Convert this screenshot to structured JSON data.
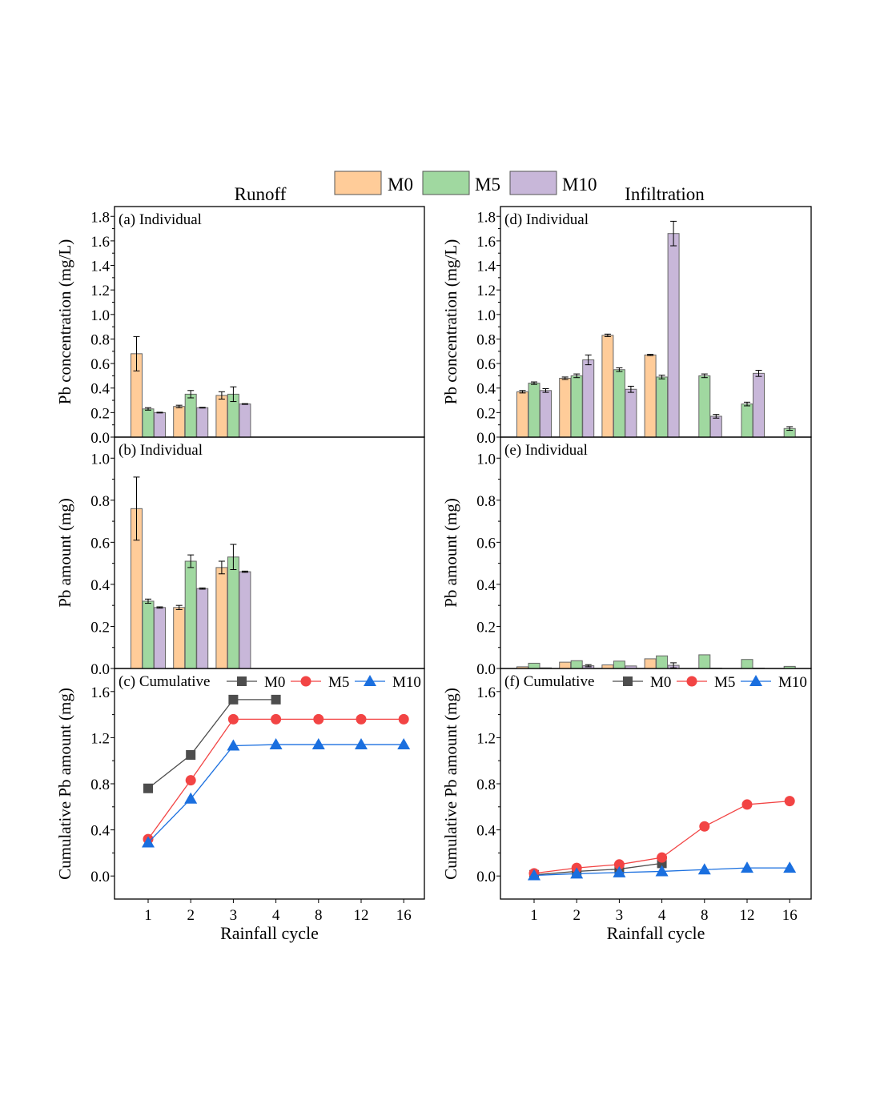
{
  "chart_data": {
    "type": "bar",
    "legend": {
      "entries": [
        "M0",
        "M5",
        "M10"
      ],
      "placement": "top-center"
    },
    "section_titles": {
      "left": "Runoff",
      "right": "Infiltration"
    },
    "colors": {
      "M0_fill": "#FFCC99",
      "M5_fill": "#A0D8A0",
      "M10_fill": "#C8B7D9",
      "M0_line": "#4D4D4D",
      "M5_line": "#F24444",
      "M10_line": "#1A6FDF"
    },
    "categories": [
      "1",
      "2",
      "3",
      "4",
      "8",
      "12",
      "16"
    ],
    "xlabel": "Rainfall cycle",
    "panels": [
      {
        "id": "a",
        "label": "(a) Individual",
        "type": "bar",
        "ylabel": "Pb concentration (mg/L)",
        "ylim": [
          0,
          1.88
        ],
        "yticks": [
          "0.0",
          "0.2",
          "0.4",
          "0.6",
          "0.8",
          "1.0",
          "1.2",
          "1.4",
          "1.6",
          "1.8"
        ],
        "series": [
          {
            "name": "M0",
            "values": [
              0.68,
              0.25,
              0.34,
              null,
              null,
              null,
              null
            ],
            "errors": [
              0.14,
              0.01,
              0.03,
              0,
              0,
              0,
              0
            ]
          },
          {
            "name": "M5",
            "values": [
              0.23,
              0.35,
              0.35,
              null,
              null,
              null,
              null
            ],
            "errors": [
              0.01,
              0.03,
              0.06,
              0,
              0,
              0,
              0
            ]
          },
          {
            "name": "M10",
            "values": [
              0.2,
              0.24,
              0.27,
              null,
              null,
              null,
              null
            ],
            "errors": [
              0.003,
              0.003,
              0.003,
              0,
              0,
              0,
              0
            ]
          }
        ]
      },
      {
        "id": "b",
        "label": "(b) Individual",
        "type": "bar",
        "ylabel": "Pb amount  (mg)",
        "ylim": [
          0,
          1.1
        ],
        "yticks": [
          "0.0",
          "0.2",
          "0.4",
          "0.6",
          "0.8",
          "1.0"
        ],
        "series": [
          {
            "name": "M0",
            "values": [
              0.76,
              0.29,
              0.48,
              null,
              null,
              null,
              null
            ],
            "errors": [
              0.15,
              0.01,
              0.03,
              0,
              0,
              0,
              0
            ]
          },
          {
            "name": "M5",
            "values": [
              0.32,
              0.51,
              0.53,
              null,
              null,
              null,
              null
            ],
            "errors": [
              0.01,
              0.03,
              0.06,
              0,
              0,
              0,
              0
            ]
          },
          {
            "name": "M10",
            "values": [
              0.29,
              0.38,
              0.46,
              null,
              null,
              null,
              null
            ],
            "errors": [
              0.003,
              0.003,
              0.003,
              0,
              0,
              0,
              0
            ]
          }
        ]
      },
      {
        "id": "c",
        "label": "(c) Cumulative",
        "type": "line",
        "ylabel": "Cumulative Pb amount (mg)",
        "ylim": [
          -0.2,
          1.8
        ],
        "yticks": [
          "0.0",
          "0.4",
          "0.8",
          "1.2",
          "1.6"
        ],
        "series": [
          {
            "name": "M0",
            "values": [
              0.76,
              1.05,
              1.53,
              1.53,
              null,
              null,
              null
            ]
          },
          {
            "name": "M5",
            "values": [
              0.32,
              0.83,
              1.36,
              1.36,
              1.36,
              1.36,
              1.36
            ]
          },
          {
            "name": "M10",
            "values": [
              0.29,
              0.67,
              1.13,
              1.14,
              1.14,
              1.14,
              1.14
            ]
          }
        ]
      },
      {
        "id": "d",
        "label": "(d) Individual",
        "type": "bar",
        "ylabel": "Pb concentration (mg/L)",
        "ylim": [
          0,
          1.88
        ],
        "yticks": [
          "0.0",
          "0.2",
          "0.4",
          "0.6",
          "0.8",
          "1.0",
          "1.2",
          "1.4",
          "1.6",
          "1.8"
        ],
        "series": [
          {
            "name": "M0",
            "values": [
              0.37,
              0.48,
              0.83,
              0.67,
              null,
              null,
              null
            ],
            "errors": [
              0.01,
              0.01,
              0.01,
              0.005,
              0,
              0,
              0
            ]
          },
          {
            "name": "M5",
            "values": [
              0.44,
              0.5,
              0.55,
              0.49,
              0.5,
              0.27,
              0.07
            ],
            "errors": [
              0.01,
              0.015,
              0.015,
              0.015,
              0.015,
              0.015,
              0.015
            ]
          },
          {
            "name": "M10",
            "values": [
              0.38,
              0.63,
              0.39,
              1.66,
              0.17,
              0.52,
              null
            ],
            "errors": [
              0.015,
              0.04,
              0.025,
              0.1,
              0.015,
              0.025,
              0
            ]
          }
        ]
      },
      {
        "id": "e",
        "label": "(e) Individual",
        "type": "bar",
        "ylabel": "Pb amount  (mg)",
        "ylim": [
          0,
          1.1
        ],
        "yticks": [
          "0.0",
          "0.2",
          "0.4",
          "0.6",
          "0.8",
          "1.0"
        ],
        "series": [
          {
            "name": "M0",
            "values": [
              0.008,
              0.03,
              0.017,
              0.046,
              null,
              null,
              null
            ],
            "errors": [
              0,
              0,
              0,
              0,
              0,
              0,
              0
            ]
          },
          {
            "name": "M5",
            "values": [
              0.025,
              0.037,
              0.035,
              0.06,
              0.065,
              0.043,
              0.01
            ],
            "errors": [
              0,
              0,
              0,
              0,
              0,
              0,
              0
            ]
          },
          {
            "name": "M10",
            "values": [
              0.003,
              0.013,
              0.012,
              0.015,
              0.002,
              0.002,
              null
            ],
            "errors": [
              0,
              0.005,
              0,
              0.012,
              0,
              0,
              0
            ]
          }
        ]
      },
      {
        "id": "f",
        "label": "(f) Cumulative",
        "type": "line",
        "ylabel": "Cumulative Pb amount (mg)",
        "ylim": [
          -0.2,
          1.8
        ],
        "yticks": [
          "0.0",
          "0.4",
          "0.8",
          "1.2",
          "1.6"
        ],
        "series": [
          {
            "name": "M0",
            "values": [
              0.01,
              0.04,
              0.06,
              0.11,
              null,
              null,
              null
            ]
          },
          {
            "name": "M5",
            "values": [
              0.023,
              0.07,
              0.1,
              0.16,
              0.43,
              0.62,
              0.65
            ]
          },
          {
            "name": "M10",
            "values": [
              0.005,
              0.02,
              0.03,
              0.04,
              0.055,
              0.07,
              0.07
            ]
          }
        ]
      }
    ]
  }
}
